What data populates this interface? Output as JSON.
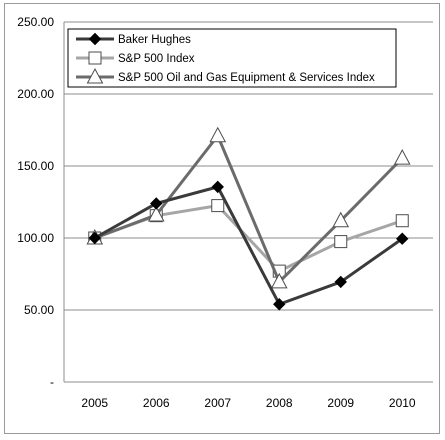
{
  "chart_data": {
    "type": "line",
    "categories": [
      "2005",
      "2006",
      "2007",
      "2008",
      "2009",
      "2010"
    ],
    "series": [
      {
        "name": "Baker Hughes",
        "values": [
          100.0,
          124.0,
          135.5,
          54.0,
          69.5,
          99.5
        ],
        "color": "#3a3a3a",
        "marker": "diamond"
      },
      {
        "name": "S&P 500 Index",
        "values": [
          100.0,
          115.5,
          122.5,
          77.0,
          97.5,
          112.0
        ],
        "color": "#a6a6a6",
        "marker": "square"
      },
      {
        "name": "S&P 500 Oil and Gas Equipment & Services Index",
        "values": [
          100.0,
          116.0,
          171.0,
          69.5,
          112.0,
          155.5
        ],
        "color": "#6b6b6b",
        "marker": "triangle"
      }
    ],
    "yticks": [
      0,
      50,
      100,
      150,
      200,
      250
    ],
    "ytick_labels": [
      "-",
      "50.00",
      "100.00",
      "150.00",
      "200.00",
      "250.00"
    ],
    "ylim": [
      0,
      250
    ],
    "grid": "horizontal",
    "legend": "top-left"
  }
}
